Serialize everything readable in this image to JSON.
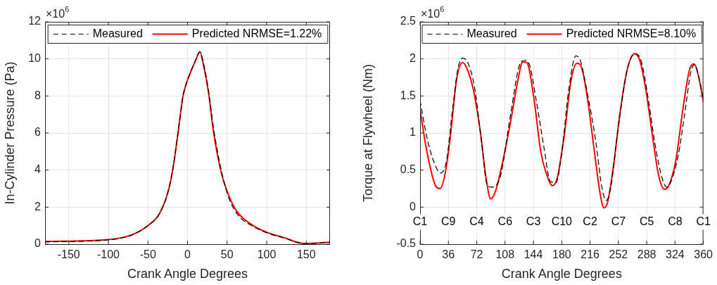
{
  "chart_data": [
    {
      "type": "line",
      "xlabel": "Crank Angle Degrees",
      "ylabel": "In-Cylinder Pressure (Pa)",
      "annotations": [
        "×10$^{6}$"
      ],
      "xlim": [
        -180,
        180
      ],
      "xticks": [
        -150,
        -100,
        -50,
        0,
        50,
        100,
        150
      ],
      "ylim": [
        0,
        12
      ],
      "yticks": [
        0,
        2,
        4,
        6,
        8,
        10,
        12
      ],
      "grid": true,
      "legend": "top",
      "series": [
        {
          "name": "Measured",
          "color": "#000000",
          "line_style": "dashed",
          "x": [
            -180,
            -100.5,
            -70.9,
            -50.2,
            -35.4,
            -23.5,
            -17.6,
            -11.7,
            -5.8,
            -1.3,
            5,
            10,
            15.6,
            20,
            26.8,
            32.7,
            41.6,
            50.5,
            62.4,
            83.1,
            100.9,
            124.6,
            136.4,
            148.3,
            180
          ],
          "values": [
            0.12,
            0.23,
            0.48,
            1.0,
            1.65,
            3.0,
            4.3,
            6.1,
            7.97,
            8.7,
            9.4,
            9.9,
            10.38,
            9.8,
            8.2,
            6.3,
            4.2,
            2.7,
            1.65,
            0.95,
            0.6,
            0.3,
            0.12,
            0.03,
            0.1
          ]
        },
        {
          "name": "Predicted NRMSE=1.22%",
          "color": "#ff0000",
          "line_style": "solid",
          "x": [
            -180,
            -100.5,
            -70.9,
            -50.2,
            -35.4,
            -23.5,
            -17.6,
            -11.7,
            -5.8,
            -1.3,
            5,
            10,
            15.6,
            20,
            26.8,
            32.7,
            41.6,
            50.5,
            62.4,
            83.1,
            100.9,
            124.6,
            136.4,
            148.3,
            180
          ],
          "values": [
            0.15,
            0.25,
            0.5,
            1.0,
            1.65,
            3.0,
            4.3,
            6.1,
            7.97,
            8.7,
            9.4,
            9.9,
            10.38,
            9.7,
            8.1,
            6.1,
            4.05,
            2.8,
            1.77,
            1.0,
            0.63,
            0.32,
            0.13,
            0.03,
            0.1
          ]
        }
      ]
    },
    {
      "type": "line",
      "xlabel": "Crank Angle Degrees",
      "ylabel": "Torque at Flywheel (Nm)",
      "annotations": [
        "×10$^{6}$",
        {
          "text": "C1",
          "x": 0,
          "y": -0.2
        },
        {
          "text": "C9",
          "x": 36,
          "y": -0.2
        },
        {
          "text": "C4",
          "x": 72,
          "y": -0.2
        },
        {
          "text": "C6",
          "x": 108,
          "y": -0.2
        },
        {
          "text": "C3",
          "x": 144,
          "y": -0.2
        },
        {
          "text": "C10",
          "x": 180,
          "y": -0.2
        },
        {
          "text": "C2",
          "x": 216,
          "y": -0.2
        },
        {
          "text": "C7",
          "x": 252,
          "y": -0.2
        },
        {
          "text": "C5",
          "x": 288,
          "y": -0.2
        },
        {
          "text": "C8",
          "x": 324,
          "y": -0.2
        },
        {
          "text": "C1",
          "x": 360,
          "y": -0.2
        }
      ],
      "xlim": [
        0,
        360
      ],
      "xticks": [
        0,
        36,
        72,
        108,
        144,
        180,
        216,
        252,
        288,
        324,
        360
      ],
      "ylim": [
        -0.5,
        2.5
      ],
      "yticks": [
        -0.5,
        0,
        0.5,
        1,
        1.5,
        2,
        2.5
      ],
      "grid": true,
      "legend": "top",
      "series": [
        {
          "name": "Measured",
          "color": "#000000",
          "line_style": "dashed",
          "x": [
            0,
            8.3,
            17.2,
            26.1,
            33.5,
            40.9,
            48.3,
            54.2,
            60.1,
            69,
            77.9,
            85.3,
            89.8,
            97.2,
            103.1,
            115,
            126.8,
            132.7,
            138.7,
            147.6,
            158,
            165.3,
            172.7,
            180.1,
            189,
            197.9,
            203.9,
            212.7,
            223.1,
            230.5,
            236.4,
            242.4,
            251.3,
            263.1,
            273.5,
            281,
            289.8,
            298.7,
            307.6,
            313.5,
            319.4,
            328.3,
            335.7,
            344.6,
            349,
            354.9,
            360
          ],
          "values": [
            1.44,
            0.96,
            0.62,
            0.46,
            0.62,
            1.28,
            1.88,
            2.01,
            1.96,
            1.63,
            0.9,
            0.3,
            0.27,
            0.3,
            0.46,
            1.25,
            1.93,
            1.98,
            1.93,
            1.44,
            0.77,
            0.35,
            0.33,
            0.74,
            1.59,
            2.04,
            1.97,
            1.53,
            0.9,
            0.3,
            0.09,
            0.27,
            1.03,
            1.85,
            2.07,
            1.97,
            1.47,
            0.84,
            0.39,
            0.27,
            0.36,
            0.71,
            1.22,
            1.85,
            1.92,
            1.72,
            1.47
          ]
        },
        {
          "name": "Predicted NRMSE=8.10%",
          "color": "#ff0000",
          "line_style": "solid",
          "x": [
            0,
            8.3,
            20.1,
            25.5,
            32,
            37.9,
            46.8,
            54.2,
            58.7,
            67.6,
            76.4,
            83.9,
            89.8,
            95.7,
            103.1,
            115,
            123.9,
            130.4,
            135.7,
            144.6,
            153.5,
            160.9,
            168.3,
            174.2,
            183.1,
            192,
            199.4,
            205.3,
            212.7,
            221.6,
            229,
            233.5,
            237.9,
            245.3,
            254.2,
            263.1,
            272.6,
            279.4,
            286.8,
            295.7,
            303.1,
            310.5,
            316.4,
            325.3,
            334.2,
            343.1,
            348.4,
            353.5,
            360
          ],
          "values": [
            1.32,
            0.77,
            0.28,
            0.25,
            0.46,
            0.9,
            1.75,
            1.95,
            1.89,
            1.59,
            1.03,
            0.39,
            0.11,
            0.21,
            0.52,
            1.15,
            1.69,
            1.96,
            1.95,
            1.47,
            0.74,
            0.44,
            0.29,
            0.39,
            0.96,
            1.72,
            1.94,
            1.88,
            1.47,
            0.74,
            0.17,
            -0.01,
            0.05,
            0.52,
            1.28,
            1.85,
            2.07,
            1.97,
            1.59,
            0.93,
            0.43,
            0.24,
            0.3,
            0.65,
            1.34,
            1.88,
            1.93,
            1.78,
            1.42
          ]
        }
      ]
    }
  ]
}
